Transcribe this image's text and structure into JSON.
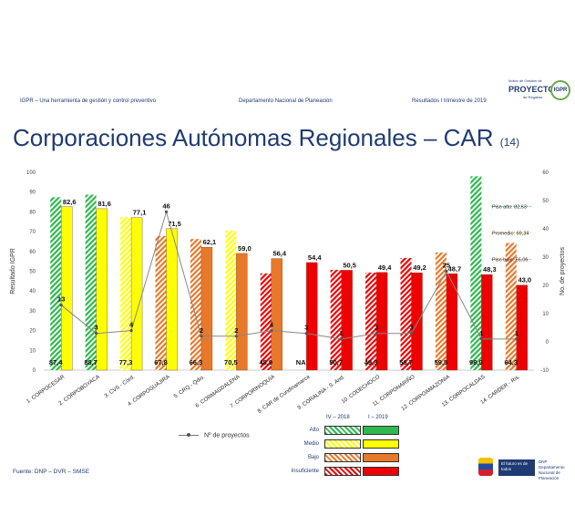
{
  "header": {
    "left_text": "IGPR – Una herramienta de gestión y control preventivo",
    "center_text": "Departamento Nacional de Planeación",
    "right_text": "Resultados I trimestre de 2019",
    "logo_top": {
      "line1": "Índice de Gestión de",
      "line2": "PROYECTOS",
      "line3": "de Regalías",
      "badge": "IGPR"
    }
  },
  "title": {
    "main": "Corporaciones Autónomas Regionales – CAR",
    "count": "(14)"
  },
  "footer": {
    "source": "Fuente: DNP – DVR – SMSE",
    "logo_text1": "El futuro es de todos",
    "logo_text2": "DNP Departamento Nacional de Planeación"
  },
  "colors": {
    "alto": "#2eb84e",
    "medio": "#ffff00",
    "bajo": "#e8782a",
    "insuficiente": "#ee0000",
    "line": "#888888",
    "ref_alto": "#2eb84e",
    "ref_prom": "#f2c21b",
    "ref_bajo": "#e8782a"
  },
  "legend": {
    "projects_label": "Nº de proyectos",
    "col_2018": "IV – 2018",
    "col_2019": "I – 2019",
    "categories": [
      "Alto",
      "Medio",
      "Bajo",
      "Insuficiente"
    ]
  },
  "chart_data": {
    "type": "bar",
    "categories": [
      "1. CORPOCESAR",
      "2. CORPOBOYACA",
      "3. CVS - Córd.",
      "4. CORPOGUAJIRA",
      "5. CRQ - Qdio.",
      "6. CORMAGDALENA",
      "7. CORPORINOQUIA",
      "8. CAR de Cundinamarca",
      "9. CORALINA - S. And.",
      "10. CODECHOCO",
      "11. CORPONARIÑO",
      "12. CORPOAMAZONIA",
      "13. CORPOCALDAS",
      "14. CARDER - Ris."
    ],
    "series": [
      {
        "name": "IV – 2018",
        "values": [
          87.4,
          88.7,
          77.3,
          67.8,
          66.3,
          70.5,
          48.9,
          null,
          50.7,
          49.3,
          56.7,
          59.5,
          98.0,
          64.3
        ],
        "labels": [
          "87,4",
          "88,7",
          "77,3",
          "67,8",
          "66,3",
          "70,5",
          "48,9",
          "NA",
          "50,7",
          "49,3",
          "56,7",
          "59,5",
          "98,0",
          "64,3"
        ],
        "categories": [
          "alto",
          "alto",
          "medio",
          "bajo",
          "bajo",
          "medio",
          "insuficiente",
          null,
          "insuficiente",
          "insuficiente",
          "insuficiente",
          "bajo",
          "alto",
          "bajo"
        ],
        "hatched": true
      },
      {
        "name": "I – 2019",
        "values": [
          82.6,
          81.6,
          77.1,
          71.5,
          62.1,
          59.0,
          56.4,
          54.4,
          50.5,
          49.4,
          49.2,
          48.7,
          48.3,
          43.0
        ],
        "labels": [
          "82,6",
          "81,6",
          "77,1",
          "71,5",
          "62,1",
          "59,0",
          "56,4",
          "54,4",
          "50,5",
          "49,4",
          "49,2",
          "48,7",
          "48,3",
          "43,0"
        ],
        "categories": [
          "medio",
          "medio",
          "medio",
          "medio",
          "bajo",
          "bajo",
          "bajo",
          "insuficiente",
          "insuficiente",
          "insuficiente",
          "insuficiente",
          "insuficiente",
          "insuficiente",
          "insuficiente"
        ],
        "hatched": false
      },
      {
        "name": "Nº de proyectos",
        "axis": "right",
        "values": [
          13,
          3,
          4,
          46,
          2,
          2,
          4,
          3,
          1,
          3,
          3,
          25,
          1,
          1
        ],
        "labels": [
          "13",
          "3",
          "4",
          "46",
          "2",
          "2",
          "4",
          "3",
          "1",
          "3",
          "3",
          "25",
          "1",
          "1"
        ]
      }
    ],
    "reference_lines": [
      {
        "label": "Piso alto: 82,63",
        "value": 82.63
      },
      {
        "label": "Promedio: 69,34",
        "value": 69.34
      },
      {
        "label": "Piso bajo: 56,06",
        "value": 56.06
      }
    ],
    "ylabel": "Resultado IGPR",
    "y2label": "No. de proyectos",
    "ylim": [
      0,
      100
    ],
    "y2lim": [
      -10,
      60
    ],
    "yticks": [
      "0",
      "10",
      "20",
      "30",
      "40",
      "50",
      "60",
      "70",
      "80",
      "90",
      "100"
    ],
    "y2ticks": [
      "-10",
      "0",
      "10",
      "20",
      "30",
      "40",
      "50",
      "60"
    ],
    "grid": false
  }
}
